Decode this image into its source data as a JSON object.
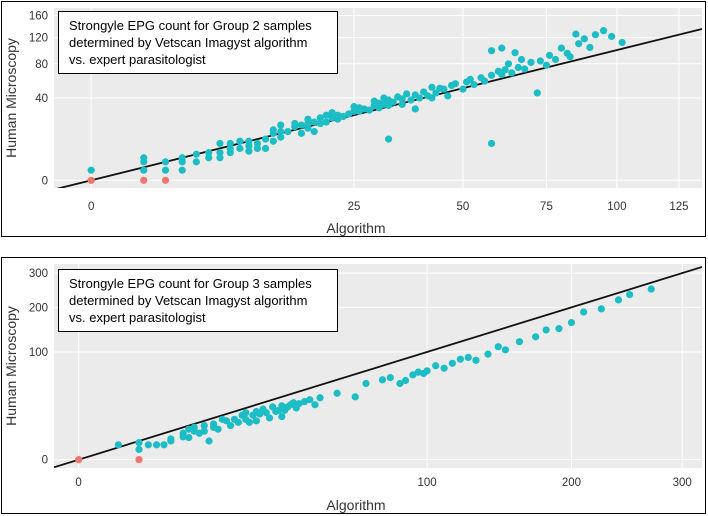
{
  "chart_data": [
    {
      "type": "scatter",
      "title_lines": [
        "Strongyle EPG count for Group 2 samples",
        "determined by Vetscan Imagyst algorithm",
        "vs. expert parasitologist"
      ],
      "xlabel": "Algorithm",
      "ylabel": "Human Microscopy",
      "scale": "sqrt",
      "xlim": [
        -0.5,
        135
      ],
      "ylim": [
        -0.35,
        175
      ],
      "x_ticks": [
        0,
        25,
        50,
        75,
        100,
        125
      ],
      "x_tick_labels": [
        "0",
        "25",
        "50",
        "75",
        "100",
        "125"
      ],
      "y_ticks": [
        0,
        40,
        80,
        120,
        160
      ],
      "y_tick_labels": [
        "0",
        "40",
        "80",
        "120",
        "160"
      ],
      "grid": true,
      "legend": "none",
      "fit_line": {
        "slope": 1.0,
        "intercept": 0.0
      },
      "colors": {
        "positive": "#1cbdc5",
        "zero": "#f0756f",
        "line": "#111111",
        "plot_bg": "#ebebeb",
        "grid": "#ffffff"
      },
      "zero_points": [
        [
          0,
          0
        ],
        [
          1,
          0
        ],
        [
          2,
          0
        ]
      ],
      "points": [
        [
          0,
          0.6
        ],
        [
          1,
          0.6
        ],
        [
          1,
          2
        ],
        [
          1,
          3
        ],
        [
          2,
          0.6
        ],
        [
          2,
          2
        ],
        [
          3,
          0.6
        ],
        [
          3,
          2
        ],
        [
          3,
          3
        ],
        [
          4,
          2
        ],
        [
          4,
          4
        ],
        [
          5,
          3
        ],
        [
          5,
          4.5
        ],
        [
          6,
          3
        ],
        [
          6,
          4.5
        ],
        [
          6,
          8
        ],
        [
          7,
          4.5
        ],
        [
          7,
          6
        ],
        [
          7,
          8
        ],
        [
          8,
          6
        ],
        [
          8,
          9
        ],
        [
          9,
          5
        ],
        [
          9,
          7
        ],
        [
          9,
          9
        ],
        [
          10,
          6
        ],
        [
          10,
          8
        ],
        [
          11,
          6
        ],
        [
          11,
          10
        ],
        [
          12,
          9
        ],
        [
          12,
          13
        ],
        [
          12,
          15
        ],
        [
          13,
          11
        ],
        [
          13,
          14
        ],
        [
          13,
          18
        ],
        [
          14,
          14
        ],
        [
          15,
          17
        ],
        [
          15,
          19
        ],
        [
          16,
          13
        ],
        [
          16,
          18
        ],
        [
          17,
          16
        ],
        [
          17,
          19
        ],
        [
          17,
          22
        ],
        [
          18,
          14
        ],
        [
          18,
          20
        ],
        [
          19,
          19
        ],
        [
          19,
          23
        ],
        [
          20,
          20
        ],
        [
          20,
          25
        ],
        [
          21,
          23
        ],
        [
          21,
          27
        ],
        [
          22,
          22
        ],
        [
          22,
          25
        ],
        [
          23,
          24
        ],
        [
          24,
          26
        ],
        [
          25,
          28
        ],
        [
          25,
          32
        ],
        [
          26,
          28
        ],
        [
          26,
          31
        ],
        [
          27,
          30
        ],
        [
          28,
          29
        ],
        [
          29,
          33
        ],
        [
          29,
          37
        ],
        [
          30,
          31
        ],
        [
          30,
          35
        ],
        [
          31,
          34
        ],
        [
          31,
          40
        ],
        [
          32,
          33
        ],
        [
          32,
          38
        ],
        [
          33,
          36
        ],
        [
          34,
          41
        ],
        [
          35,
          34
        ],
        [
          35,
          39
        ],
        [
          36,
          44
        ],
        [
          37,
          38
        ],
        [
          38,
          30
        ],
        [
          38,
          43
        ],
        [
          39,
          40
        ],
        [
          40,
          46
        ],
        [
          41,
          42
        ],
        [
          42,
          40
        ],
        [
          42,
          51
        ],
        [
          43,
          45
        ],
        [
          44,
          50
        ],
        [
          45,
          49
        ],
        [
          46,
          42
        ],
        [
          47,
          53
        ],
        [
          48,
          55
        ],
        [
          50,
          49
        ],
        [
          51,
          57
        ],
        [
          52,
          60
        ],
        [
          53,
          54
        ],
        [
          55,
          62
        ],
        [
          56,
          58
        ],
        [
          58,
          65
        ],
        [
          60,
          70
        ],
        [
          61,
          66
        ],
        [
          62,
          72
        ],
        [
          63,
          80
        ],
        [
          64,
          68
        ],
        [
          66,
          75
        ],
        [
          67,
          86
        ],
        [
          68,
          73
        ],
        [
          70,
          82
        ],
        [
          72,
          45
        ],
        [
          73,
          84
        ],
        [
          75,
          78
        ],
        [
          76,
          92
        ],
        [
          78,
          86
        ],
        [
          80,
          103
        ],
        [
          82,
          95
        ],
        [
          83,
          90
        ],
        [
          86,
          110
        ],
        [
          88,
          118
        ],
        [
          90,
          104
        ],
        [
          92,
          125
        ],
        [
          95,
          132
        ],
        [
          98,
          122
        ],
        [
          102,
          112
        ],
        [
          61,
          103
        ],
        [
          65,
          96
        ],
        [
          58,
          8
        ],
        [
          32,
          10
        ],
        [
          58,
          99
        ],
        [
          85,
          126
        ]
      ]
    },
    {
      "type": "scatter",
      "title_lines": [
        "Strongyle EPG count for Group 3 samples",
        "determined by Vetscan Imagyst algorithm",
        "vs. expert parasitologist"
      ],
      "xlabel": "Algorithm",
      "ylabel": "Human Microscopy",
      "scale": "sqrt",
      "xlim": [
        -0.5,
        320
      ],
      "ylim": [
        -0.6,
        330
      ],
      "x_ticks": [
        0,
        100,
        200,
        300
      ],
      "x_tick_labels": [
        "0",
        "100",
        "200",
        "300"
      ],
      "y_ticks": [
        0,
        100,
        200,
        300
      ],
      "y_tick_labels": [
        "0",
        "100",
        "200",
        "300"
      ],
      "grid": true,
      "legend": "none",
      "fit_line": {
        "slope": 1.0,
        "intercept": 0.0
      },
      "colors": {
        "positive": "#1cbdc5",
        "zero": "#f0756f",
        "line": "#111111",
        "plot_bg": "#ebebeb",
        "grid": "#ffffff"
      },
      "zero_points": [
        [
          0,
          0
        ],
        [
          3,
          0
        ]
      ],
      "points": [
        [
          1.3,
          1.9
        ],
        [
          3,
          2.5
        ],
        [
          3,
          0.9
        ],
        [
          4,
          1.9
        ],
        [
          5,
          1.9
        ],
        [
          6,
          1.9
        ],
        [
          7,
          3
        ],
        [
          7,
          3.7
        ],
        [
          9,
          4.5
        ],
        [
          9,
          6
        ],
        [
          10,
          4.2
        ],
        [
          10,
          8
        ],
        [
          11,
          7
        ],
        [
          11,
          9
        ],
        [
          12,
          6
        ],
        [
          13,
          10
        ],
        [
          13,
          7
        ],
        [
          14,
          3
        ],
        [
          15,
          9
        ],
        [
          15,
          11
        ],
        [
          16,
          8
        ],
        [
          17,
          14
        ],
        [
          18,
          13
        ],
        [
          19,
          10
        ],
        [
          20,
          14
        ],
        [
          21,
          12
        ],
        [
          22,
          17
        ],
        [
          23,
          14
        ],
        [
          23,
          19
        ],
        [
          24,
          12
        ],
        [
          25,
          17
        ],
        [
          26,
          13
        ],
        [
          26,
          20
        ],
        [
          27,
          18
        ],
        [
          28,
          22
        ],
        [
          29,
          19
        ],
        [
          30,
          15
        ],
        [
          31,
          24
        ],
        [
          32,
          20
        ],
        [
          33,
          21
        ],
        [
          34,
          16
        ],
        [
          34,
          25
        ],
        [
          35,
          21
        ],
        [
          36,
          24
        ],
        [
          37,
          26
        ],
        [
          38,
          28
        ],
        [
          39,
          23
        ],
        [
          40,
          27
        ],
        [
          42,
          29
        ],
        [
          44,
          31
        ],
        [
          46,
          26
        ],
        [
          48,
          33
        ],
        [
          55,
          38
        ],
        [
          63,
          34
        ],
        [
          68,
          50
        ],
        [
          76,
          55
        ],
        [
          80,
          58
        ],
        [
          85,
          50
        ],
        [
          88,
          54
        ],
        [
          92,
          62
        ],
        [
          95,
          66
        ],
        [
          98,
          64
        ],
        [
          100,
          68
        ],
        [
          105,
          76
        ],
        [
          110,
          72
        ],
        [
          115,
          80
        ],
        [
          120,
          87
        ],
        [
          125,
          90
        ],
        [
          130,
          85
        ],
        [
          138,
          96
        ],
        [
          145,
          110
        ],
        [
          150,
          104
        ],
        [
          160,
          120
        ],
        [
          172,
          130
        ],
        [
          180,
          145
        ],
        [
          190,
          148
        ],
        [
          200,
          162
        ],
        [
          210,
          188
        ],
        [
          225,
          196
        ],
        [
          240,
          220
        ],
        [
          250,
          235
        ],
        [
          270,
          251
        ]
      ]
    }
  ]
}
